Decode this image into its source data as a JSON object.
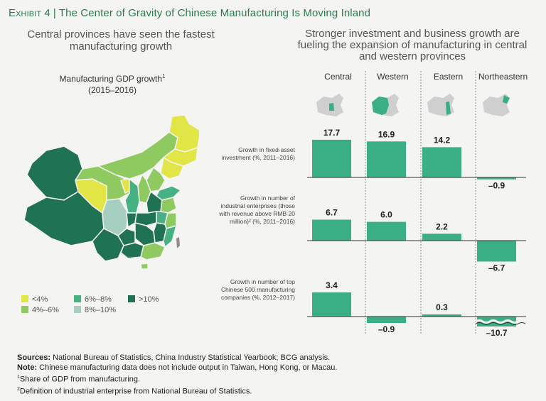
{
  "header": {
    "exhibit_label": "Exhibit 4",
    "title": "The Center of Gravity of Chinese Manufacturing Is Moving Inland"
  },
  "left_panel": {
    "subtitle": "Central provinces have seen the fastest manufacturing growth",
    "map_title": "Manufacturing GDP growth",
    "map_title_note": "1",
    "map_period": "(2015–2016)",
    "legend": [
      {
        "label": "<4%",
        "color": "#e2e546"
      },
      {
        "label": "4%–6%",
        "color": "#8fca61"
      },
      {
        "label": "6%–8%",
        "color": "#46b183"
      },
      {
        "label": "8%–10%",
        "color": "#a6cfc1"
      },
      {
        "label": ">10%",
        "color": "#1f7352"
      }
    ]
  },
  "right_panel": {
    "subtitle": "Stronger investment and business growth are fueling the expansion of manufacturing in central and western provinces"
  },
  "chart_data": {
    "type": "bar",
    "categories": [
      "Central",
      "Western",
      "Eastern",
      "Northeastern"
    ],
    "series": [
      {
        "name": "Growth in fixed-asset investment (%, 2011–2016)",
        "values": [
          17.7,
          16.9,
          14.2,
          -0.9
        ],
        "labels": [
          "17.7",
          "16.9",
          "14.2",
          "–0.9"
        ]
      },
      {
        "name": "Growth in number of industrial enterprises (those with revenue above RMB 20 million)² (%, 2011–2016)",
        "values": [
          6.7,
          6.0,
          2.2,
          -6.7
        ],
        "labels": [
          "6.7",
          "6.0",
          "2.2",
          "–6.7"
        ]
      },
      {
        "name": "Growth in number of top Chinese 500 manufacturing companies (%, 2012–2017)",
        "values": [
          3.4,
          -0.9,
          0.3,
          -10.7
        ],
        "labels": [
          "3.4",
          "–0.9",
          "0.3",
          "–10.7"
        ],
        "axis_break": [
          false,
          false,
          false,
          true
        ]
      }
    ],
    "bar_color": "#3aae85",
    "axis_color": "#333333",
    "grid": false
  },
  "footer": {
    "sources_label": "Sources:",
    "sources_text": "National Bureau of Statistics, China Industry Statistical Yearbook; BCG analysis.",
    "note_label": "Note:",
    "note_text": "Chinese manufacturing data does not include output in Taiwan, Hong Kong, or Macau.",
    "footnote1_mark": "1",
    "footnote1": "Share of GDP from manufacturing.",
    "footnote2_mark": "2",
    "footnote2": "Definition of industrial enterprise from National Bureau of Statistics."
  }
}
